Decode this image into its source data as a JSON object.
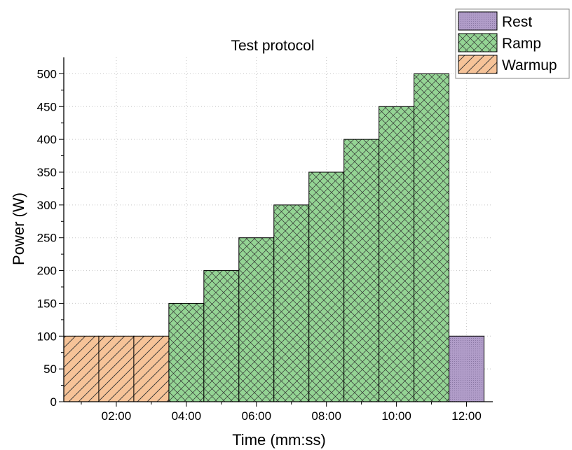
{
  "chart_data": {
    "type": "bar",
    "title": "Test protocol",
    "xlabel": "Time (mm:ss)",
    "ylabel": "Power (W)",
    "xlim": [
      0.5,
      12.75
    ],
    "ylim": [
      0,
      525
    ],
    "x_ticks": [
      {
        "value": 2,
        "label": "02:00"
      },
      {
        "value": 4,
        "label": "04:00"
      },
      {
        "value": 6,
        "label": "06:00"
      },
      {
        "value": 8,
        "label": "08:00"
      },
      {
        "value": 10,
        "label": "10:00"
      },
      {
        "value": 12,
        "label": "12:00"
      }
    ],
    "y_ticks": [
      0,
      50,
      100,
      150,
      200,
      250,
      300,
      350,
      400,
      450,
      500
    ],
    "grid": true,
    "legend_position": "top-right",
    "series": [
      {
        "name": "Rest",
        "color": "#b09cc8",
        "pattern": "dots",
        "bars": [
          {
            "start": 11.5,
            "end": 12.5,
            "value": 100
          }
        ]
      },
      {
        "name": "Ramp",
        "color": "#94d494",
        "pattern": "crosshatch",
        "bars": [
          {
            "start": 3.5,
            "end": 4.5,
            "value": 150
          },
          {
            "start": 4.5,
            "end": 5.5,
            "value": 200
          },
          {
            "start": 5.5,
            "end": 6.5,
            "value": 250
          },
          {
            "start": 6.5,
            "end": 7.5,
            "value": 300
          },
          {
            "start": 7.5,
            "end": 8.5,
            "value": 350
          },
          {
            "start": 8.5,
            "end": 9.5,
            "value": 400
          },
          {
            "start": 9.5,
            "end": 10.5,
            "value": 450
          },
          {
            "start": 10.5,
            "end": 11.5,
            "value": 500
          }
        ]
      },
      {
        "name": "Warmup",
        "color": "#f6c398",
        "pattern": "diagonal",
        "bars": [
          {
            "start": 0.5,
            "end": 1.5,
            "value": 100
          },
          {
            "start": 1.5,
            "end": 2.5,
            "value": 100
          },
          {
            "start": 2.5,
            "end": 3.5,
            "value": 100
          }
        ]
      }
    ]
  }
}
